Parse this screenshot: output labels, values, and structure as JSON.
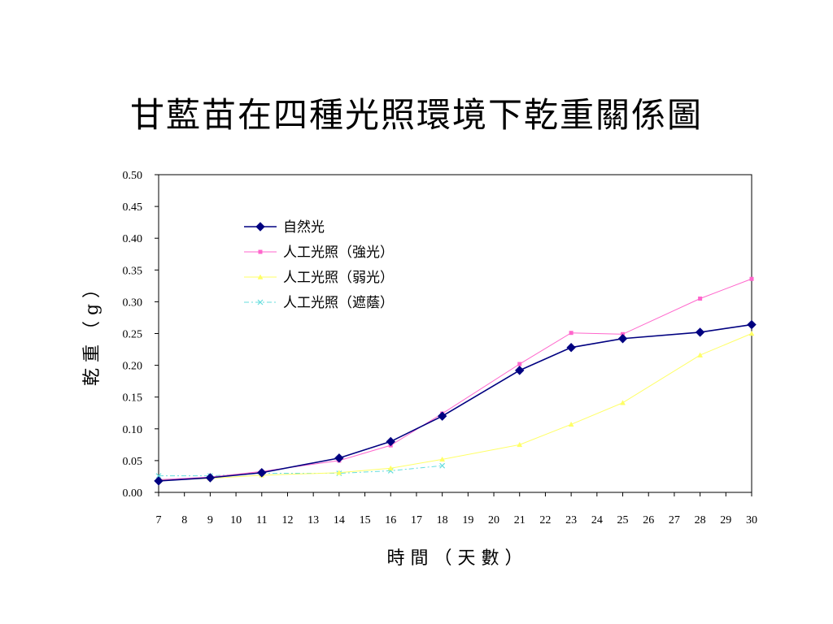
{
  "chart_data": {
    "type": "line",
    "title": "甘藍苗在四種光照環境下乾重關係圖",
    "xlabel": "時 間 （ 天 數 ）",
    "ylabel": "乾 重 （ g ）",
    "xlim": [
      7,
      30
    ],
    "ylim": [
      0,
      0.5
    ],
    "x_ticks": [
      7,
      8,
      9,
      10,
      11,
      12,
      13,
      14,
      15,
      16,
      17,
      18,
      19,
      20,
      21,
      22,
      23,
      24,
      25,
      26,
      27,
      28,
      29,
      30
    ],
    "y_ticks": [
      "0.00",
      "0.05",
      "0.10",
      "0.15",
      "0.20",
      "0.25",
      "0.30",
      "0.35",
      "0.40",
      "0.45",
      "0.50"
    ],
    "grid": false,
    "legend_position": "top-left",
    "series": [
      {
        "name": "自然光",
        "color": "#000080",
        "marker": "diamond",
        "x": [
          7,
          9,
          11,
          14,
          16,
          18,
          21,
          23,
          25,
          28,
          30
        ],
        "values": [
          0.018,
          0.023,
          0.031,
          0.054,
          0.08,
          0.12,
          0.192,
          0.228,
          0.242,
          0.252,
          0.264
        ]
      },
      {
        "name": "人工光照（強光）",
        "color": "#ff66cc",
        "marker": "square",
        "x": [
          7,
          9,
          11,
          14,
          16,
          18,
          21,
          23,
          25,
          28,
          30
        ],
        "values": [
          0.02,
          0.024,
          0.033,
          0.05,
          0.074,
          0.124,
          0.202,
          0.251,
          0.249,
          0.305,
          0.336
        ]
      },
      {
        "name": "人工光照（弱光）",
        "color": "#ffff66",
        "marker": "triangle",
        "x": [
          7,
          9,
          11,
          14,
          16,
          18,
          21,
          23,
          25,
          28,
          30
        ],
        "values": [
          0.019,
          0.022,
          0.027,
          0.031,
          0.038,
          0.052,
          0.075,
          0.107,
          0.141,
          0.216,
          0.25
        ]
      },
      {
        "name": "人工光照（遮蔭）",
        "color": "#66dddd",
        "marker": "x",
        "x": [
          7,
          9,
          11,
          14,
          16,
          18
        ],
        "values": [
          0.026,
          0.026,
          0.03,
          0.03,
          0.034,
          0.042
        ]
      }
    ]
  }
}
